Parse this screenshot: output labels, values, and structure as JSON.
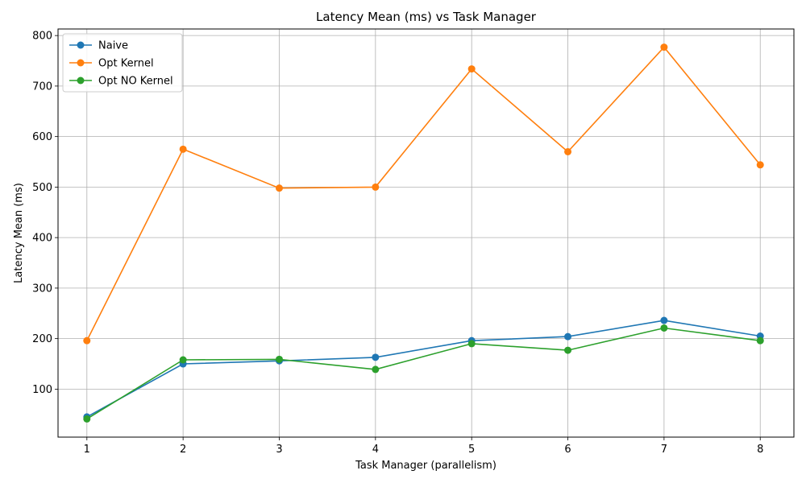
{
  "chart_data": {
    "type": "line",
    "title": "Latency Mean (ms) vs Task Manager",
    "xlabel": "Task Manager (parallelism)",
    "ylabel": "Latency Mean (ms)",
    "x": [
      1,
      2,
      3,
      4,
      5,
      6,
      7,
      8
    ],
    "xticks": [
      "1",
      "2",
      "3",
      "4",
      "5",
      "6",
      "7",
      "8"
    ],
    "yticks": [
      100,
      200,
      300,
      400,
      500,
      600,
      700,
      800
    ],
    "xlim": [
      0.7,
      8.35
    ],
    "ylim": [
      5,
      813
    ],
    "grid": true,
    "legend_position": "top-left",
    "series": [
      {
        "name": "Naive",
        "color": "#1f77b4",
        "values": [
          45,
          150,
          156,
          163,
          196,
          204,
          236,
          205
        ]
      },
      {
        "name": "Opt Kernel",
        "color": "#ff7f0e",
        "values": [
          196,
          575,
          498,
          500,
          734,
          570,
          777,
          544
        ]
      },
      {
        "name": "Opt NO Kernel",
        "color": "#2ca02c",
        "values": [
          41,
          158,
          159,
          139,
          190,
          177,
          221,
          196
        ]
      }
    ]
  }
}
